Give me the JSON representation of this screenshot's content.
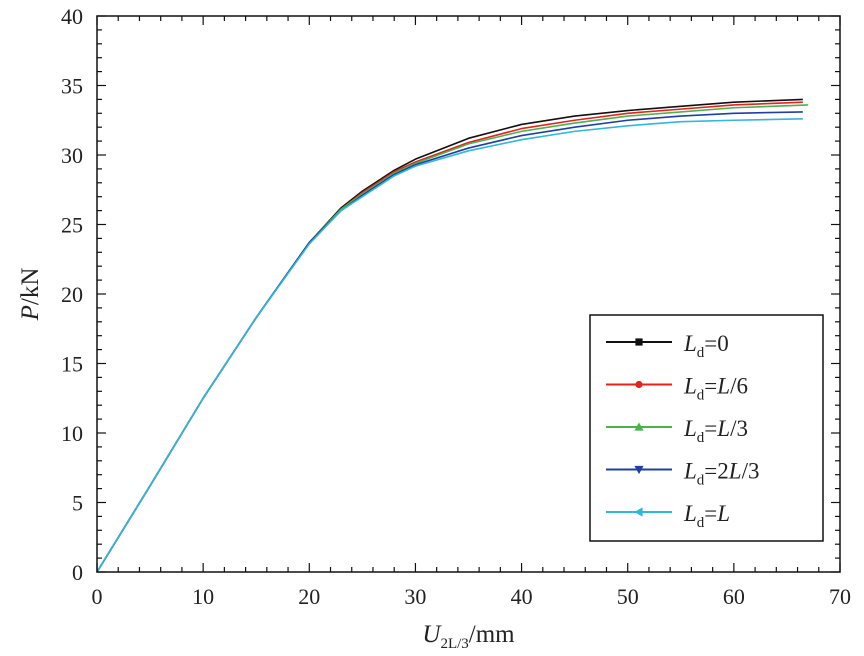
{
  "chart_data": {
    "type": "line",
    "title": "",
    "xlabel": {
      "main": "U",
      "sub": "2L/3",
      "unit": "/mm"
    },
    "ylabel": {
      "main": "P",
      "unit": "/kN"
    },
    "xlim": [
      0,
      70
    ],
    "ylim": [
      0,
      40
    ],
    "xticks": [
      0,
      10,
      20,
      30,
      40,
      50,
      60,
      70
    ],
    "yticks": [
      0,
      5,
      10,
      15,
      20,
      25,
      30,
      35,
      40
    ],
    "xtick_labels": [
      "0",
      "10",
      "20",
      "30",
      "40",
      "50",
      "60",
      "70"
    ],
    "ytick_labels": [
      "0",
      "5",
      "10",
      "15",
      "20",
      "25",
      "30",
      "35",
      "40"
    ],
    "grid": false,
    "legend_position": "bottom-right",
    "series": [
      {
        "legend": {
          "main": "L",
          "sub": "d",
          "suffix": "=0",
          "var": ""
        },
        "color": "#111111",
        "marker": "square",
        "x": [
          0,
          5,
          10,
          15,
          20,
          23,
          25,
          28,
          30,
          35,
          40,
          45,
          50,
          55,
          60,
          66.5
        ],
        "y": [
          0,
          6.2,
          12.5,
          18.3,
          23.7,
          26.2,
          27.4,
          28.9,
          29.7,
          31.2,
          32.2,
          32.8,
          33.2,
          33.5,
          33.8,
          34.0
        ]
      },
      {
        "legend": {
          "main": "L",
          "sub": "d",
          "suffix": "=",
          "var": "L/6"
        },
        "color": "#e8211d",
        "marker": "circle",
        "x": [
          0,
          5,
          10,
          15,
          20,
          23,
          25,
          28,
          30,
          35,
          40,
          45,
          50,
          55,
          60,
          66.5
        ],
        "y": [
          0,
          6.2,
          12.5,
          18.3,
          23.7,
          26.1,
          27.3,
          28.8,
          29.5,
          30.9,
          31.9,
          32.5,
          33.0,
          33.3,
          33.6,
          33.8
        ]
      },
      {
        "legend": {
          "main": "L",
          "sub": "d",
          "suffix": "=",
          "var": "L/3"
        },
        "color": "#4cb24c",
        "marker": "triangle-up",
        "x": [
          0,
          5,
          10,
          15,
          20,
          23,
          25,
          28,
          30,
          35,
          40,
          45,
          50,
          55,
          60,
          67
        ],
        "y": [
          0,
          6.2,
          12.5,
          18.3,
          23.7,
          26.1,
          27.2,
          28.7,
          29.4,
          30.8,
          31.7,
          32.3,
          32.8,
          33.1,
          33.4,
          33.6
        ]
      },
      {
        "legend": {
          "main": "L",
          "sub": "d",
          "suffix": "=",
          "var": "2L/3"
        },
        "color": "#1f3fa6",
        "marker": "triangle-down",
        "x": [
          0,
          5,
          10,
          15,
          20,
          23,
          25,
          28,
          30,
          35,
          40,
          45,
          50,
          55,
          60,
          66.5
        ],
        "y": [
          0,
          6.2,
          12.5,
          18.3,
          23.7,
          26.0,
          27.1,
          28.6,
          29.3,
          30.5,
          31.4,
          32.0,
          32.5,
          32.8,
          33.0,
          33.1
        ]
      },
      {
        "legend": {
          "main": "L",
          "sub": "d",
          "suffix": "=",
          "var": "L"
        },
        "color": "#2fb8d8",
        "marker": "triangle-left",
        "x": [
          0,
          5,
          10,
          15,
          20,
          23,
          25,
          28,
          30,
          35,
          40,
          45,
          50,
          55,
          60,
          66.5
        ],
        "y": [
          0,
          6.2,
          12.5,
          18.3,
          23.6,
          26.0,
          27.0,
          28.5,
          29.2,
          30.3,
          31.1,
          31.7,
          32.1,
          32.4,
          32.5,
          32.6
        ]
      }
    ]
  }
}
